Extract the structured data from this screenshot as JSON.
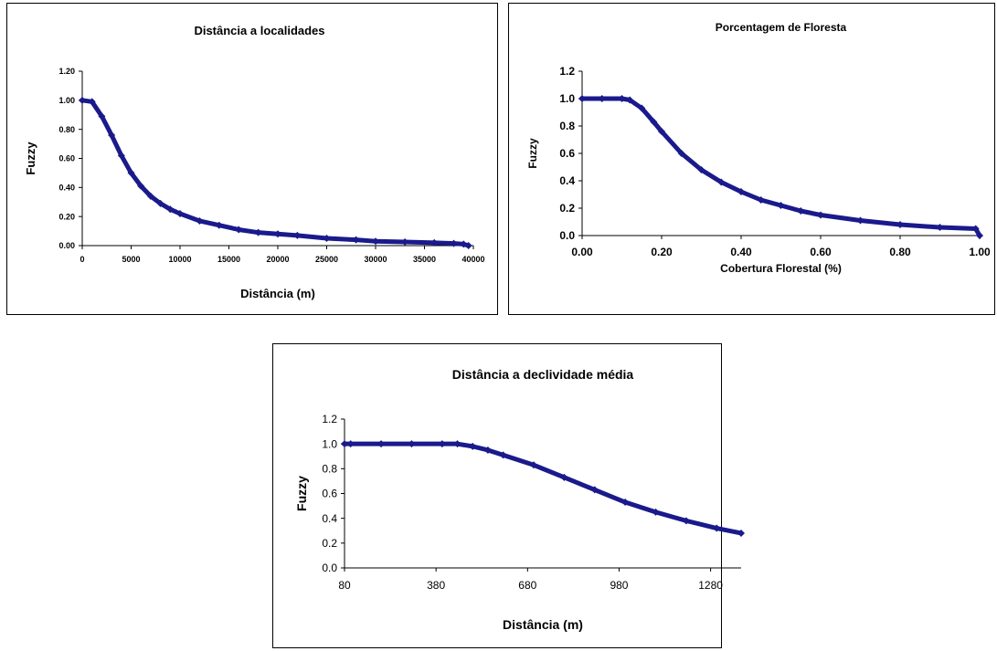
{
  "colors": {
    "series": "#1a1a8c",
    "axis": "#000000"
  },
  "chart_data": [
    {
      "type": "line",
      "title": "Distância a localidades",
      "xlabel": "Distância (m)",
      "ylabel": "Fuzzy",
      "xlim": [
        0,
        40000
      ],
      "ylim": [
        0,
        1.2
      ],
      "x_ticks": [
        "0",
        "5000",
        "10000",
        "15000",
        "20000",
        "25000",
        "30000",
        "35000",
        "40000"
      ],
      "y_ticks": [
        "0.00",
        "0.20",
        "0.40",
        "0.60",
        "0.80",
        "1.00",
        "1.20"
      ],
      "grid": false,
      "legend": "none",
      "marker": "diamond",
      "series": [
        {
          "x": [
            0,
            1000,
            2000,
            3000,
            4000,
            5000,
            6000,
            7000,
            8000,
            9000,
            10000,
            12000,
            14000,
            16000,
            18000,
            20000,
            22000,
            25000,
            28000,
            30000,
            33000,
            36000,
            38000,
            39000,
            39500
          ],
          "y": [
            1.0,
            0.99,
            0.89,
            0.76,
            0.62,
            0.5,
            0.41,
            0.34,
            0.29,
            0.25,
            0.22,
            0.17,
            0.14,
            0.11,
            0.09,
            0.08,
            0.07,
            0.05,
            0.04,
            0.03,
            0.025,
            0.02,
            0.015,
            0.01,
            0.0
          ]
        }
      ]
    },
    {
      "type": "line",
      "title": "Porcentagem de Floresta",
      "xlabel": "Cobertura Florestal (%)",
      "ylabel": "Fuzzy",
      "xlim": [
        0,
        1
      ],
      "ylim": [
        0,
        1.2
      ],
      "x_ticks": [
        "0.00",
        "0.20",
        "0.40",
        "0.60",
        "0.80",
        "1.00"
      ],
      "y_ticks": [
        "0.0",
        "0.2",
        "0.4",
        "0.6",
        "0.8",
        "1.0",
        "1.2"
      ],
      "grid": false,
      "legend": "none",
      "marker": "diamond",
      "series": [
        {
          "x": [
            0.0,
            0.05,
            0.1,
            0.12,
            0.15,
            0.18,
            0.2,
            0.25,
            0.3,
            0.35,
            0.4,
            0.45,
            0.5,
            0.55,
            0.6,
            0.7,
            0.8,
            0.9,
            0.99,
            1.0
          ],
          "y": [
            1.0,
            1.0,
            1.0,
            0.99,
            0.93,
            0.83,
            0.76,
            0.6,
            0.48,
            0.39,
            0.32,
            0.26,
            0.22,
            0.18,
            0.15,
            0.11,
            0.08,
            0.06,
            0.05,
            0.0
          ]
        }
      ]
    },
    {
      "type": "line",
      "title": "Distância a declividade média",
      "xlabel": "Distância (m)",
      "ylabel": "Fuzzy",
      "xlim": [
        80,
        1380
      ],
      "ylim": [
        0,
        1.2
      ],
      "x_ticks": [
        "80",
        "380",
        "680",
        "980",
        "1280"
      ],
      "y_ticks": [
        "0.0",
        "0.2",
        "0.4",
        "0.6",
        "0.8",
        "1.0",
        "1.2"
      ],
      "grid": false,
      "legend": "none",
      "marker": "diamond",
      "series": [
        {
          "x": [
            80,
            100,
            200,
            300,
            400,
            450,
            500,
            550,
            600,
            700,
            800,
            900,
            1000,
            1100,
            1200,
            1300,
            1380
          ],
          "y": [
            1.0,
            1.0,
            1.0,
            1.0,
            1.0,
            1.0,
            0.98,
            0.95,
            0.91,
            0.83,
            0.73,
            0.63,
            0.53,
            0.45,
            0.38,
            0.32,
            0.28
          ]
        }
      ]
    }
  ]
}
